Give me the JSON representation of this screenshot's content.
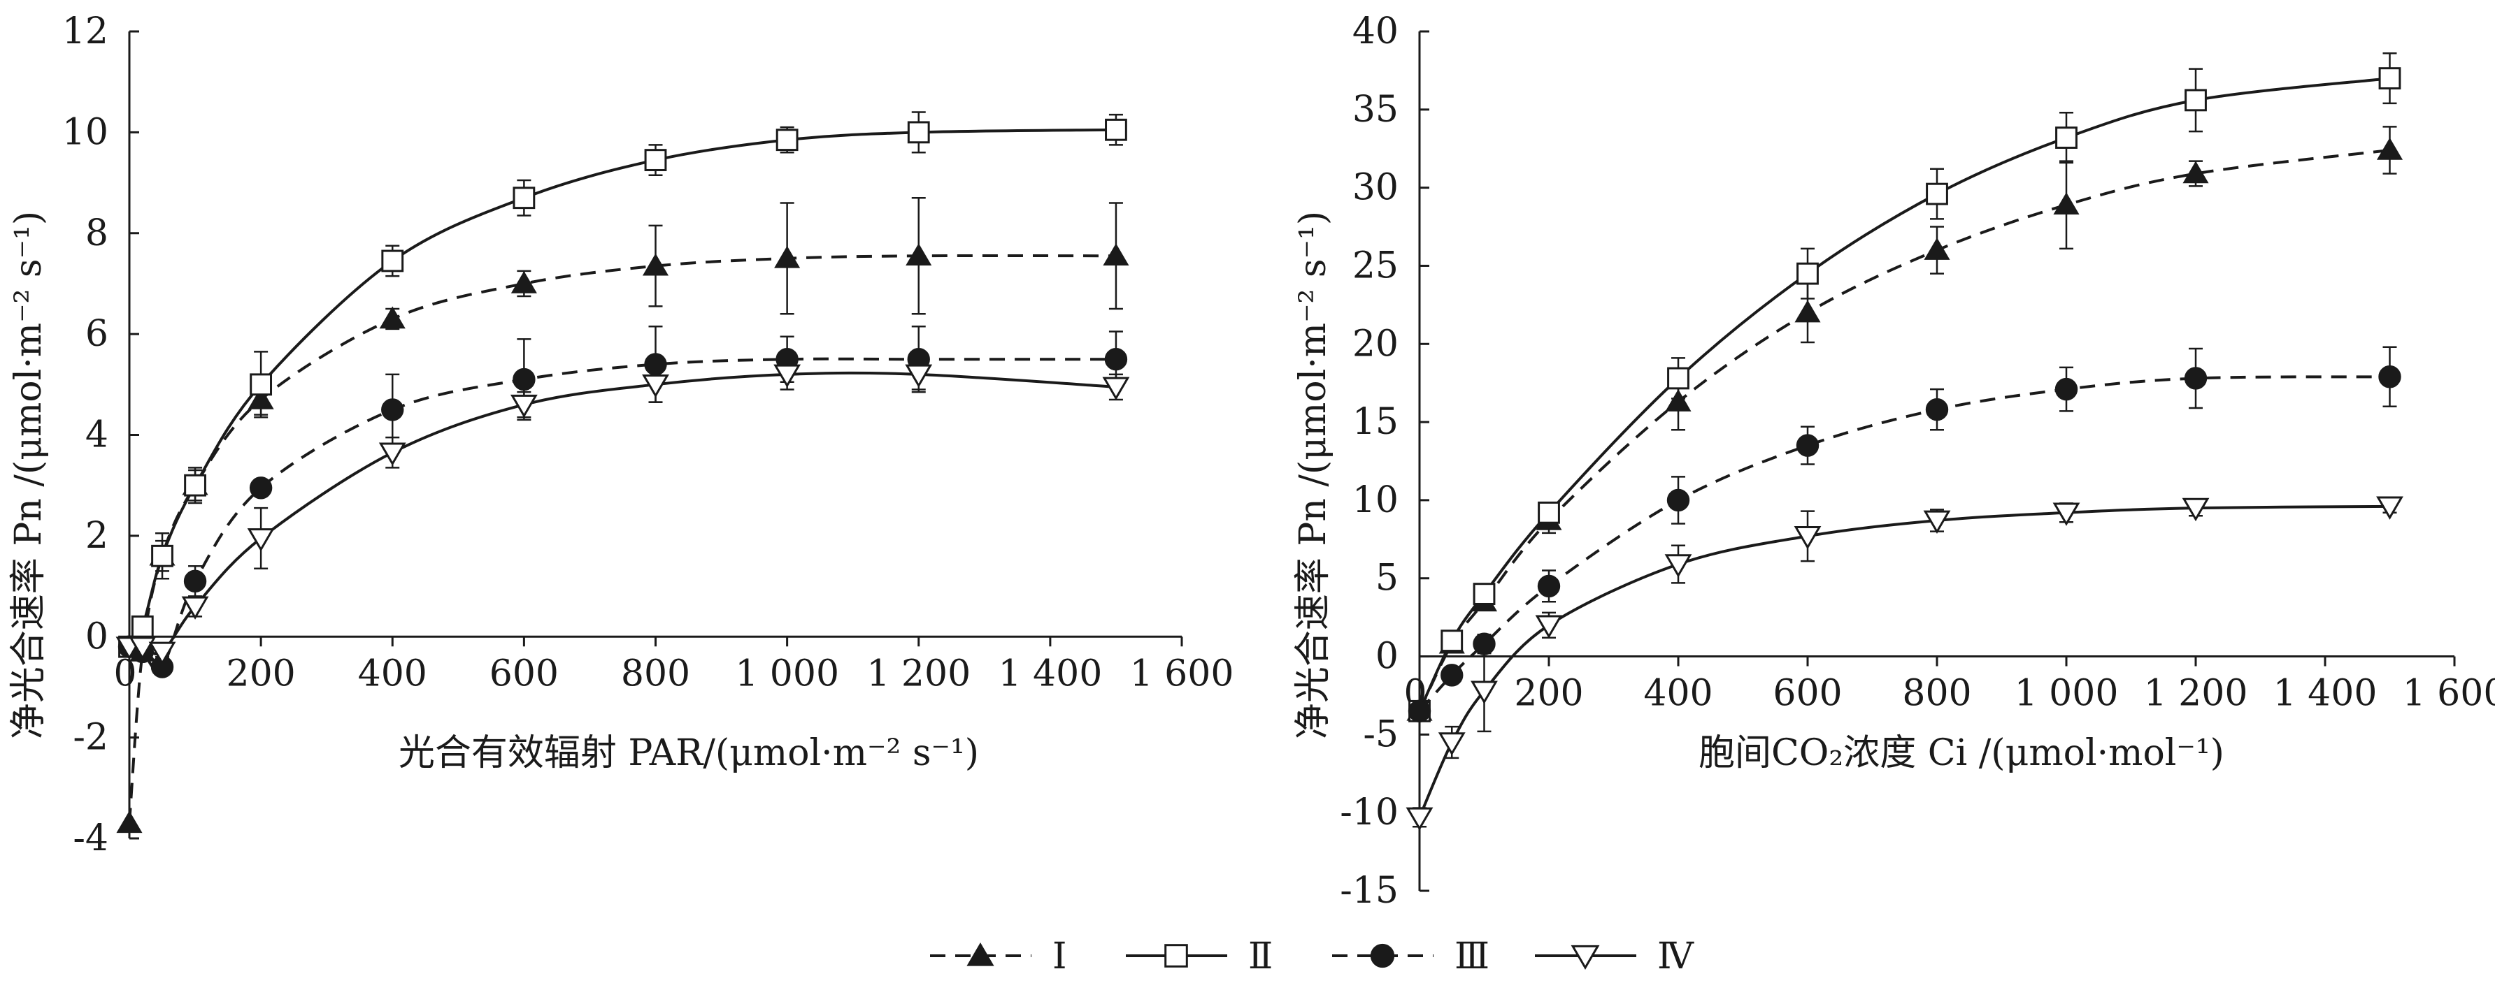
{
  "chart_data": [
    {
      "type": "line",
      "xlabel": "光合有效辐射 PAR/(μmol·m⁻² s⁻¹)",
      "ylabel": "净光合速率 Pn /(μmol·m⁻² s⁻¹)",
      "xlim": [
        0,
        1600
      ],
      "ylim": [
        -4,
        12
      ],
      "xticks": [
        0,
        200,
        400,
        600,
        800,
        1000,
        1200,
        1400,
        1600
      ],
      "xtick_labels": [
        "0",
        "200",
        "400",
        "600",
        "800",
        "1 000",
        "1 200",
        "1 400",
        "1 600"
      ],
      "yticks": [
        -4,
        -2,
        0,
        2,
        4,
        6,
        8,
        10,
        12
      ],
      "ytick_labels": [
        "-4",
        "-2",
        "0",
        "2",
        "4",
        "6",
        "8",
        "10",
        "12"
      ],
      "series": [
        {
          "name": "Ⅰ",
          "marker": "triangle-up-filled",
          "line": "dashed",
          "x": [
            0,
            20,
            50,
            100,
            200,
            400,
            600,
            800,
            1000,
            1200,
            1500
          ],
          "y": [
            -3.7,
            -0.3,
            1.6,
            3.0,
            4.7,
            6.3,
            7.0,
            7.35,
            7.5,
            7.55,
            7.55
          ],
          "err": [
            0.0,
            0.1,
            0.3,
            0.3,
            0.3,
            0.2,
            0.25,
            0.8,
            1.1,
            1.15,
            1.05
          ]
        },
        {
          "name": "Ⅱ",
          "marker": "square-open",
          "line": "solid",
          "x": [
            0,
            20,
            50,
            100,
            200,
            400,
            600,
            800,
            1000,
            1200,
            1500
          ],
          "y": [
            -0.2,
            0.2,
            1.6,
            3.0,
            5.0,
            7.45,
            8.7,
            9.45,
            9.85,
            10.0,
            10.05
          ],
          "err": [
            0.1,
            0.1,
            0.45,
            0.35,
            0.65,
            0.3,
            0.35,
            0.3,
            0.25,
            0.4,
            0.3
          ]
        },
        {
          "name": "Ⅲ",
          "marker": "circle-filled",
          "line": "dashed",
          "x": [
            0,
            20,
            50,
            100,
            200,
            400,
            600,
            800,
            1000,
            1200,
            1500
          ],
          "y": [
            -0.2,
            -0.3,
            -0.6,
            1.1,
            2.95,
            4.5,
            5.1,
            5.4,
            5.5,
            5.5,
            5.5
          ],
          "err": [
            0.1,
            0.1,
            0.1,
            0.3,
            0.15,
            0.7,
            0.8,
            0.75,
            0.45,
            0.65,
            0.55
          ]
        },
        {
          "name": "Ⅳ",
          "marker": "triangle-down-open",
          "line": "solid",
          "x": [
            0,
            20,
            50,
            100,
            200,
            400,
            600,
            800,
            1000,
            1200,
            1500
          ],
          "y": [
            -0.2,
            -0.2,
            -0.3,
            0.6,
            1.95,
            3.65,
            4.6,
            5.0,
            5.2,
            5.2,
            4.95
          ],
          "err": [
            0.1,
            0.1,
            0.1,
            0.2,
            0.6,
            0.3,
            0.25,
            0.35,
            0.3,
            0.3,
            0.25
          ]
        }
      ]
    },
    {
      "type": "line",
      "xlabel": "胞间CO₂浓度 Ci /(μmol·mol⁻¹)",
      "ylabel": "净光合速率 Pn /(μmol·m⁻² s⁻¹)",
      "xlim": [
        0,
        1600
      ],
      "ylim": [
        -15,
        40
      ],
      "xticks": [
        0,
        200,
        400,
        600,
        800,
        1000,
        1200,
        1400,
        1600
      ],
      "xtick_labels": [
        "0",
        "200",
        "400",
        "600",
        "800",
        "1 000",
        "1 200",
        "1 400",
        "1 600"
      ],
      "yticks": [
        -15,
        -10,
        -5,
        0,
        5,
        10,
        15,
        20,
        25,
        30,
        35,
        40
      ],
      "ytick_labels": [
        "-15",
        "-10",
        "-5",
        "0",
        "5",
        "10",
        "15",
        "20",
        "25",
        "30",
        "35",
        "40"
      ],
      "series": [
        {
          "name": "Ⅰ",
          "marker": "triangle-up-filled",
          "line": "dashed",
          "x": [
            0,
            50,
            100,
            200,
            400,
            600,
            800,
            1000,
            1200,
            1500
          ],
          "y": [
            -3.5,
            0.8,
            3.5,
            8.7,
            16.3,
            22.0,
            26.0,
            28.9,
            30.9,
            32.4
          ],
          "err": [
            0.4,
            0.5,
            0.5,
            0.8,
            1.8,
            1.9,
            1.5,
            2.8,
            0.8,
            1.5
          ]
        },
        {
          "name": "Ⅱ",
          "marker": "square-open",
          "line": "solid",
          "x": [
            0,
            50,
            100,
            200,
            400,
            600,
            800,
            1000,
            1200,
            1500
          ],
          "y": [
            -3.5,
            1.0,
            4.0,
            9.2,
            17.8,
            24.5,
            29.6,
            33.2,
            35.6,
            37.0
          ],
          "err": [
            0.4,
            0.5,
            0.5,
            0.6,
            1.3,
            1.6,
            1.6,
            1.6,
            2.0,
            1.6
          ]
        },
        {
          "name": "Ⅲ",
          "marker": "circle-filled",
          "line": "dashed",
          "x": [
            0,
            50,
            100,
            200,
            400,
            600,
            800,
            1000,
            1200,
            1500
          ],
          "y": [
            -3.5,
            -1.2,
            0.8,
            4.5,
            10.0,
            13.5,
            15.8,
            17.1,
            17.8,
            17.9
          ],
          "err": [
            0.4,
            0.3,
            0.6,
            1.0,
            1.5,
            1.2,
            1.3,
            1.4,
            1.9,
            1.9
          ]
        },
        {
          "name": "Ⅳ",
          "marker": "triangle-down-open",
          "line": "solid",
          "x": [
            0,
            50,
            100,
            200,
            400,
            600,
            800,
            1000,
            1200,
            1500
          ],
          "y": [
            -10.3,
            -5.5,
            -2.2,
            2.0,
            5.9,
            7.7,
            8.7,
            9.2,
            9.5,
            9.6
          ],
          "err": [
            0.6,
            1.0,
            2.6,
            0.8,
            1.2,
            1.6,
            0.7,
            0.6,
            0.5,
            0.4
          ]
        }
      ]
    }
  ],
  "legend": [
    {
      "name": "Ⅰ",
      "marker": "triangle-up-filled",
      "line": "dashed"
    },
    {
      "name": "Ⅱ",
      "marker": "square-open",
      "line": "solid"
    },
    {
      "name": "Ⅲ",
      "marker": "circle-filled",
      "line": "dashed"
    },
    {
      "name": "Ⅳ",
      "marker": "triangle-down-open",
      "line": "solid"
    }
  ],
  "colors": {
    "ink": "#1a1a1a",
    "background": "#ffffff"
  }
}
